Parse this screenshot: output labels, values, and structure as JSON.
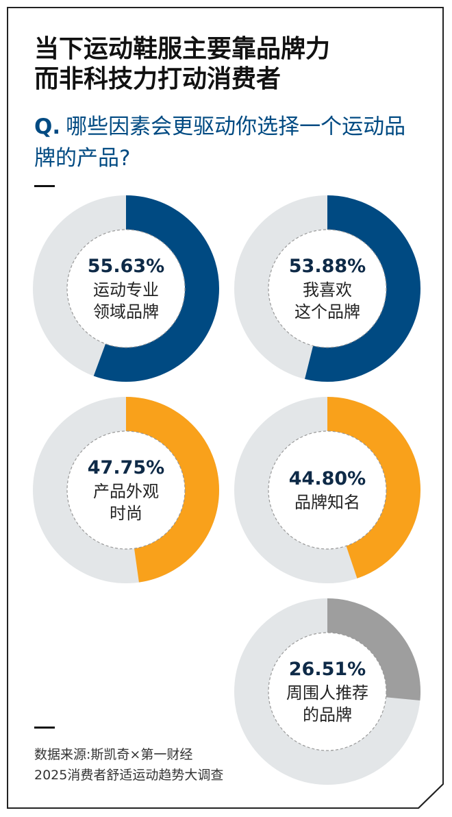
{
  "title_lines": [
    "当下运动鞋服主要靠品牌力",
    "而非科技力打动消费者"
  ],
  "question": {
    "prefix": "Q.",
    "text": "哪些因素会更驱动你选择一个运动品牌的产品?"
  },
  "source_lines": [
    "数据来源:斯凯奇×第一财经",
    "2025消费者舒适运动趋势大调查"
  ],
  "chart_data": {
    "type": "pie",
    "title": "当下运动鞋服主要靠品牌力而非科技力打动消费者",
    "subtitle": "Q. 哪些因素会更驱动你选择一个运动品牌的产品?",
    "unit": "%",
    "colors": {
      "track": "#e3e6e8",
      "blue": "#004a82",
      "orange": "#f9a11b",
      "gray": "#9e9e9e"
    },
    "items": [
      {
        "value": 55.63,
        "value_label": "55.63%",
        "label_lines": [
          "运动专业",
          "领域品牌"
        ],
        "color": "#004a82"
      },
      {
        "value": 53.88,
        "value_label": "53.88%",
        "label_lines": [
          "我喜欢",
          "这个品牌"
        ],
        "color": "#004a82"
      },
      {
        "value": 47.75,
        "value_label": "47.75%",
        "label_lines": [
          "产品外观",
          "时尚"
        ],
        "color": "#f9a11b"
      },
      {
        "value": 44.8,
        "value_label": "44.80%",
        "label_lines": [
          "品牌知名"
        ],
        "color": "#f9a11b"
      },
      {
        "value": 26.51,
        "value_label": "26.51%",
        "label_lines": [
          "周围人推荐",
          "的品牌"
        ],
        "color": "#9e9e9e"
      }
    ]
  }
}
